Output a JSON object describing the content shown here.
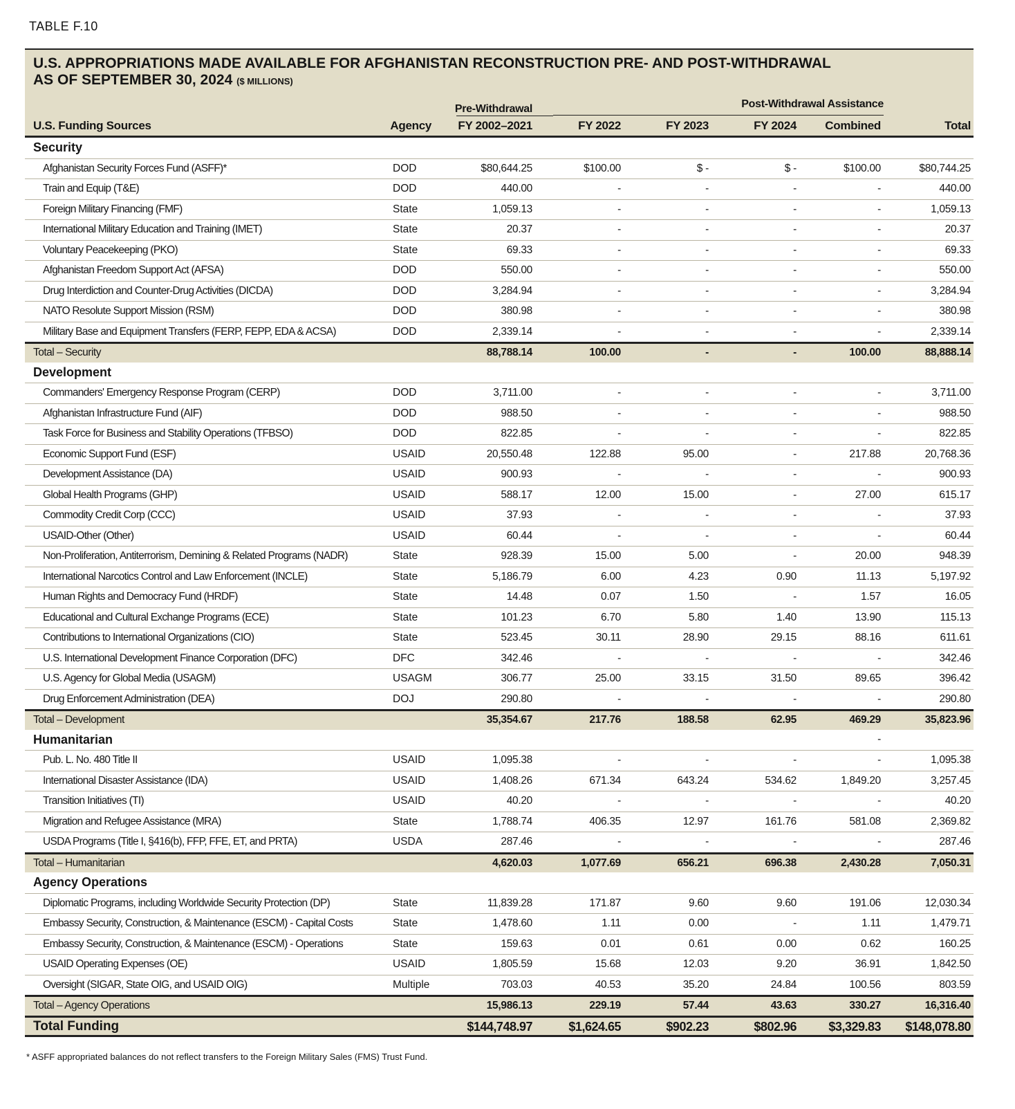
{
  "label": "TABLE F.10",
  "title": "U.S. APPROPRIATIONS MADE AVAILABLE FOR AFGHANISTAN RECONSTRUCTION PRE- AND POST-WITHDRAWAL",
  "subtitle": "AS OF SEPTEMBER 30, 2024",
  "units": "($ MILLIONS)",
  "header": {
    "group_pre": "Pre-Withdrawal",
    "group_post": "Post-Withdrawal Assistance",
    "columns": [
      "U.S. Funding Sources",
      "Agency",
      "FY 2002–2021",
      "FY 2022",
      "FY 2023",
      "FY 2024",
      "Combined",
      "Total"
    ]
  },
  "sections": [
    {
      "name": "Security",
      "rows": [
        [
          "Afghanistan Security Forces Fund (ASFF)*",
          "DOD",
          "$80,644.25",
          "$100.00",
          "$ -",
          "$ -",
          "$100.00",
          "$80,744.25"
        ],
        [
          "Train and Equip (T&E)",
          "DOD",
          "440.00",
          "-",
          "-",
          "-",
          "-",
          "440.00"
        ],
        [
          "Foreign Military Financing (FMF)",
          "State",
          "1,059.13",
          "-",
          "-",
          "-",
          "-",
          "1,059.13"
        ],
        [
          "International Military Education and Training (IMET)",
          "State",
          "20.37",
          "-",
          "-",
          "-",
          "-",
          "20.37"
        ],
        [
          "Voluntary Peacekeeping (PKO)",
          "State",
          "69.33",
          "-",
          "-",
          "-",
          "-",
          "69.33"
        ],
        [
          "Afghanistan Freedom Support Act (AFSA)",
          "DOD",
          "550.00",
          "-",
          "-",
          "-",
          "-",
          "550.00"
        ],
        [
          "Drug Interdiction and Counter-Drug Activities (DICDA)",
          "DOD",
          "3,284.94",
          "-",
          "-",
          "-",
          "-",
          "3,284.94"
        ],
        [
          "NATO Resolute Support Mission (RSM)",
          "DOD",
          "380.98",
          "-",
          "-",
          "-",
          "-",
          "380.98"
        ],
        [
          "Military Base and Equipment Transfers (FERP, FEPP, EDA & ACSA)",
          "DOD",
          "2,339.14",
          "-",
          "-",
          "-",
          "-",
          "2,339.14"
        ]
      ],
      "total": {
        "label": "Total – Security",
        "values": [
          "88,788.14",
          "100.00",
          "-",
          "-",
          "100.00",
          "88,888.14"
        ]
      }
    },
    {
      "name": "Development",
      "rows": [
        [
          "Commanders' Emergency Response Program (CERP)",
          "DOD",
          "3,711.00",
          "-",
          "-",
          "-",
          "-",
          "3,711.00"
        ],
        [
          "Afghanistan Infrastructure Fund (AIF)",
          "DOD",
          "988.50",
          "-",
          "-",
          "-",
          "-",
          "988.50"
        ],
        [
          "Task Force for Business and Stability Operations (TFBSO)",
          "DOD",
          "822.85",
          "-",
          "-",
          "-",
          "-",
          "822.85"
        ],
        [
          "Economic Support Fund (ESF)",
          "USAID",
          "20,550.48",
          "122.88",
          "95.00",
          "-",
          "217.88",
          "20,768.36"
        ],
        [
          "Development Assistance (DA)",
          "USAID",
          "900.93",
          "-",
          "-",
          "-",
          "-",
          "900.93"
        ],
        [
          "Global Health Programs (GHP)",
          "USAID",
          "588.17",
          "12.00",
          "15.00",
          "-",
          "27.00",
          "615.17"
        ],
        [
          "Commodity Credit Corp (CCC)",
          "USAID",
          "37.93",
          "-",
          "-",
          "-",
          "-",
          "37.93"
        ],
        [
          "USAID-Other (Other)",
          "USAID",
          "60.44",
          "-",
          "-",
          "-",
          "-",
          "60.44"
        ],
        [
          "Non-Proliferation, Antiterrorism, Demining & Related Programs (NADR)",
          "State",
          "928.39",
          "15.00",
          "5.00",
          "-",
          "20.00",
          "948.39"
        ],
        [
          "International Narcotics Control and Law Enforcement (INCLE)",
          "State",
          "5,186.79",
          "6.00",
          "4.23",
          "0.90",
          "11.13",
          "5,197.92"
        ],
        [
          "Human Rights and Democracy Fund (HRDF)",
          "State",
          "14.48",
          "0.07",
          "1.50",
          "-",
          "1.57",
          "16.05"
        ],
        [
          "Educational and Cultural Exchange Programs (ECE)",
          "State",
          "101.23",
          "6.70",
          "5.80",
          "1.40",
          "13.90",
          "115.13"
        ],
        [
          "Contributions to International Organizations (CIO)",
          "State",
          "523.45",
          "30.11",
          "28.90",
          "29.15",
          "88.16",
          "611.61"
        ],
        [
          "U.S. International Development Finance Corporation (DFC)",
          "DFC",
          "342.46",
          "-",
          "-",
          "-",
          "-",
          "342.46"
        ],
        [
          "U.S. Agency for Global Media (USAGM)",
          "USAGM",
          "306.77",
          "25.00",
          "33.15",
          "31.50",
          "89.65",
          "396.42"
        ],
        [
          "Drug Enforcement Administration (DEA)",
          "DOJ",
          "290.80",
          "-",
          "-",
          "-",
          "-",
          "290.80"
        ]
      ],
      "total": {
        "label": "Total – Development",
        "values": [
          "35,354.67",
          "217.76",
          "188.58",
          "62.95",
          "469.29",
          "35,823.96"
        ]
      }
    },
    {
      "name": "Humanitarian",
      "mark": "-",
      "rows": [
        [
          "Pub. L. No. 480 Title II",
          "USAID",
          "1,095.38",
          "-",
          "-",
          "-",
          "-",
          "1,095.38"
        ],
        [
          "International Disaster Assistance (IDA)",
          "USAID",
          "1,408.26",
          "671.34",
          "643.24",
          "534.62",
          "1,849.20",
          "3,257.45"
        ],
        [
          "Transition Initiatives (TI)",
          "USAID",
          "40.20",
          "-",
          "-",
          "-",
          "-",
          "40.20"
        ],
        [
          "Migration and Refugee Assistance (MRA)",
          "State",
          "1,788.74",
          "406.35",
          "12.97",
          "161.76",
          "581.08",
          "2,369.82"
        ],
        [
          "USDA Programs (Title I, §416(b), FFP, FFE, ET, and PRTA)",
          "USDA",
          "287.46",
          "-",
          "-",
          "-",
          "-",
          "287.46"
        ]
      ],
      "total": {
        "label": "Total – Humanitarian",
        "values": [
          "4,620.03",
          "1,077.69",
          "656.21",
          "696.38",
          "2,430.28",
          "7,050.31"
        ]
      }
    },
    {
      "name": "Agency Operations",
      "rows": [
        [
          "Diplomatic Programs, including Worldwide Security Protection (DP)",
          "State",
          "11,839.28",
          "171.87",
          "9.60",
          "9.60",
          "191.06",
          "12,030.34"
        ],
        [
          "Embassy Security, Construction, & Maintenance (ESCM) - Capital Costs",
          "State",
          "1,478.60",
          "1.11",
          "0.00",
          "-",
          "1.11",
          "1,479.71"
        ],
        [
          "Embassy Security, Construction, & Maintenance (ESCM) - Operations",
          "State",
          "159.63",
          "0.01",
          "0.61",
          "0.00",
          "0.62",
          "160.25"
        ],
        [
          "USAID Operating Expenses (OE)",
          "USAID",
          "1,805.59",
          "15.68",
          "12.03",
          "9.20",
          "36.91",
          "1,842.50"
        ],
        [
          "Oversight (SIGAR, State OIG, and USAID OIG)",
          "Multiple",
          "703.03",
          "40.53",
          "35.20",
          "24.84",
          "100.56",
          "803.59"
        ]
      ],
      "total": {
        "label": "Total – Agency Operations",
        "values": [
          "15,986.13",
          "229.19",
          "57.44",
          "43.63",
          "330.27",
          "16,316.40"
        ]
      }
    }
  ],
  "grand_total": {
    "label": "Total Funding",
    "values": [
      "$144,748.97",
      "$1,624.65",
      "$902.23",
      "$802.96",
      "$3,329.83",
      "$148,078.80"
    ]
  },
  "footnote": "* ASFF appropriated balances do not reflect transfers to the Foreign Military Sales (FMS) Trust Fund."
}
